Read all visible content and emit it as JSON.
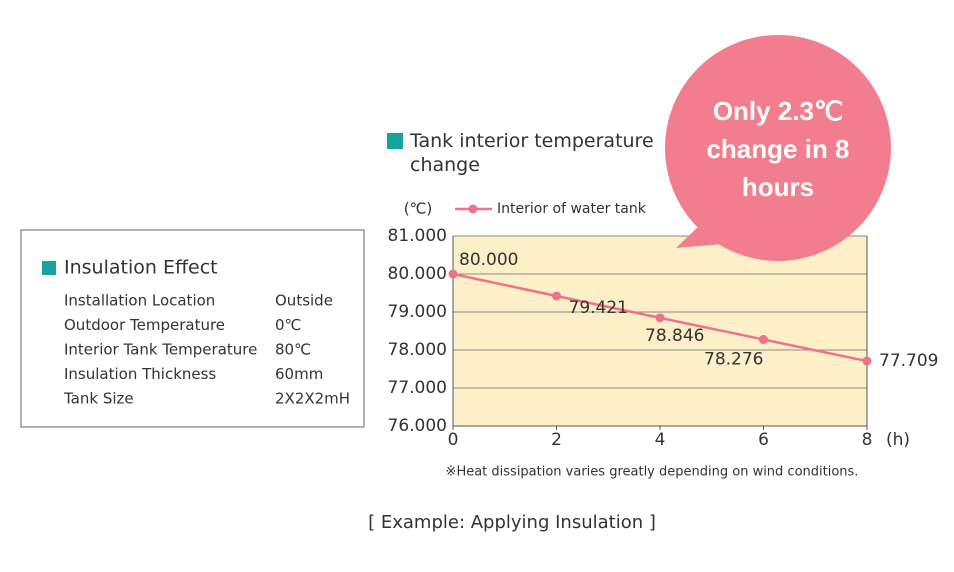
{
  "chart_data": {
    "type": "line",
    "title": "Tank interior temperature change",
    "x": [
      0,
      2,
      4,
      6,
      8
    ],
    "series": [
      {
        "name": "Interior of water tank",
        "color": "#ec7389",
        "values": [
          80.0,
          79.421,
          78.846,
          78.276,
          77.709
        ],
        "value_labels": [
          "80.000",
          "79.421",
          "78.846",
          "78.276",
          "77.709"
        ]
      }
    ],
    "xlim": [
      0,
      8
    ],
    "xticks": [
      0,
      2,
      4,
      6,
      8
    ],
    "ylim": [
      76,
      81
    ],
    "yticks": [
      {
        "value": 76,
        "label": "76.000"
      },
      {
        "value": 77,
        "label": "77.000"
      },
      {
        "value": 78,
        "label": "78.000"
      },
      {
        "value": 79,
        "label": "79.000"
      },
      {
        "value": 80,
        "label": "80.000"
      },
      {
        "value": 81,
        "label": "81.000"
      }
    ],
    "y_label": "(℃)",
    "x_label": "(h)",
    "grid": true,
    "plot_background": "#fdf0c9",
    "note": "※Heat dissipation varies greatly depending on wind conditions.",
    "callout": "Only 2.3℃ change in 8 hours"
  },
  "info_box": {
    "title": "Insulation Effect",
    "rows": [
      [
        "Installation Location",
        "Outside"
      ],
      [
        "Outdoor Temperature",
        "0℃"
      ],
      [
        "Interior Tank Temperature",
        "80℃"
      ],
      [
        "Insulation Thickness",
        "60mm"
      ],
      [
        "Tank Size",
        "2X2X2mH"
      ]
    ]
  },
  "caption": "[ Example: Applying Insulation ]"
}
